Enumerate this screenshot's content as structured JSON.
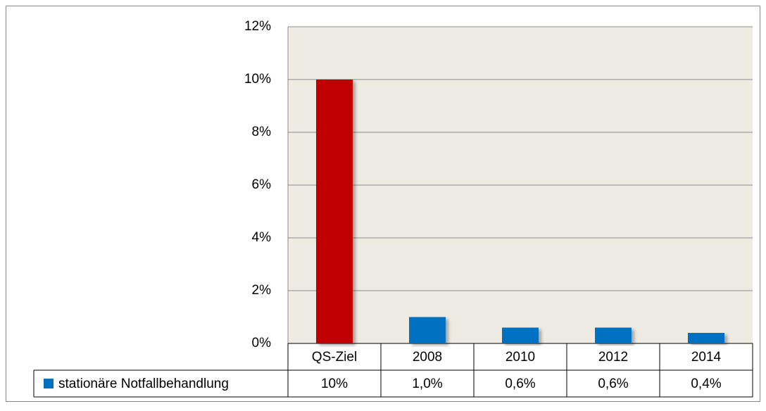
{
  "chart_data": {
    "type": "bar",
    "categories": [
      "QS-Ziel",
      "2008",
      "2010",
      "2012",
      "2014"
    ],
    "series": [
      {
        "name": "stationäre Notfallbehandlung",
        "color": "#0070c0",
        "colors": [
          "#c00000",
          "#0070c0",
          "#0070c0",
          "#0070c0",
          "#0070c0"
        ],
        "values": [
          10,
          1.0,
          0.6,
          0.6,
          0.4
        ],
        "value_labels": [
          "10%",
          "1,0%",
          "0,6%",
          "0,6%",
          "0,4%"
        ]
      }
    ],
    "ylim": [
      0,
      12
    ],
    "yticks": [
      {
        "value": 0,
        "label": "0%"
      },
      {
        "value": 2,
        "label": "2%"
      },
      {
        "value": 4,
        "label": "4%"
      },
      {
        "value": 6,
        "label": "6%"
      },
      {
        "value": 8,
        "label": "8%"
      },
      {
        "value": 10,
        "label": "10%"
      },
      {
        "value": 12,
        "label": "12%"
      }
    ],
    "grid": true,
    "data_table": true
  }
}
